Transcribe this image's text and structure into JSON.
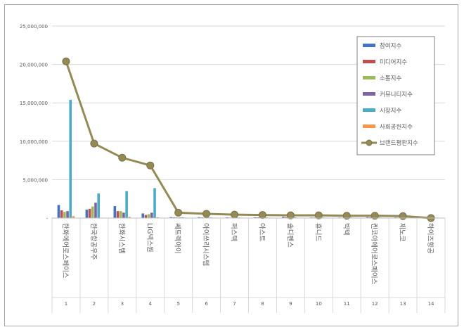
{
  "chart_data": {
    "type": "bar",
    "categories": [
      "한화에어로스페이스",
      "한국항공우주",
      "한화시스템",
      "LIG넥스원",
      "쎄트렉아이",
      "아이쓰리시스템",
      "퍼스텍",
      "아스트",
      "솔디펜스",
      "휴니드",
      "빅텍",
      "켄코아에어로스페이스",
      "제노코",
      "하이즈항공"
    ],
    "index_labels": [
      "1",
      "2",
      "3",
      "4",
      "5",
      "6",
      "7",
      "8",
      "9",
      "10",
      "11",
      "12",
      "13",
      "14"
    ],
    "ylim": [
      0,
      25000000
    ],
    "yticks": [
      0,
      5000000,
      10000000,
      15000000,
      20000000,
      25000000
    ],
    "ytick_labels": [
      "-",
      "5,000,000",
      "10,000,000",
      "15,000,000",
      "20,000,000",
      "25,000,000"
    ],
    "grid": true,
    "legend_position": "top-right",
    "series": [
      {
        "name": "참여지수",
        "type": "bar",
        "color": "#4472C4",
        "values": [
          1700000,
          1100000,
          1550000,
          600000,
          120000,
          110000,
          90000,
          100000,
          160000,
          80000,
          70000,
          110000,
          80000,
          40000
        ]
      },
      {
        "name": "미디어지수",
        "type": "bar",
        "color": "#C0504D",
        "values": [
          1000000,
          1200000,
          900000,
          400000,
          90000,
          80000,
          60000,
          90000,
          120000,
          70000,
          50000,
          90000,
          60000,
          30000
        ]
      },
      {
        "name": "소통지수",
        "type": "bar",
        "color": "#9BBB59",
        "values": [
          800000,
          1500000,
          900000,
          500000,
          90000,
          80000,
          70000,
          80000,
          90000,
          60000,
          60000,
          80000,
          60000,
          30000
        ]
      },
      {
        "name": "커뮤니티지수",
        "type": "bar",
        "color": "#8064A2",
        "values": [
          900000,
          2000000,
          700000,
          700000,
          80000,
          80000,
          60000,
          70000,
          80000,
          60000,
          60000,
          70000,
          50000,
          20000
        ]
      },
      {
        "name": "시장지수",
        "type": "bar",
        "color": "#4BACC6",
        "values": [
          15400000,
          3200000,
          3500000,
          3900000,
          100000,
          80000,
          70000,
          80000,
          90000,
          70000,
          70000,
          80000,
          60000,
          20000
        ]
      },
      {
        "name": "사회공헌지수",
        "type": "bar",
        "color": "#F79646",
        "values": [
          250000,
          50000,
          150000,
          100000,
          30000,
          30000,
          20000,
          30000,
          30000,
          30000,
          20000,
          30000,
          20000,
          10000
        ]
      },
      {
        "name": "브랜드평판지수",
        "type": "line",
        "color": "#948A54",
        "values": [
          20400000,
          9700000,
          7850000,
          6850000,
          700000,
          550000,
          450000,
          400000,
          350000,
          350000,
          300000,
          300000,
          250000,
          0
        ]
      }
    ]
  }
}
